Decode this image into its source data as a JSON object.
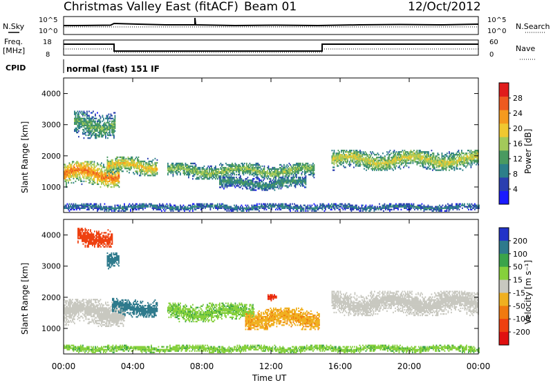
{
  "header": {
    "title": "Christmas Valley East (fitACF)",
    "beam": "Beam 01",
    "date": "12/Oct/2012"
  },
  "panels": {
    "nsky_label": "N.Sky",
    "nsearch_label": "N.Search",
    "freq_label_1": "Freq.",
    "freq_label_2": "[MHz]",
    "nave_label": "Nave",
    "cpid_label": "CPID",
    "cpid_value": "normal (fast) 151 IF",
    "noise_ticks_left": [
      "10^5",
      "10^0"
    ],
    "noise_ticks_right": [
      "10^5",
      "10^0"
    ],
    "freq_ticks_left": [
      "18",
      "8"
    ],
    "nave_ticks_right": [
      "60",
      "0"
    ]
  },
  "x_axis": {
    "label": "Time UT",
    "ticks": [
      "00:00",
      "04:00",
      "08:00",
      "12:00",
      "16:00",
      "20:00",
      "00:00"
    ]
  },
  "power_colorbar": {
    "label": "Power [dB]",
    "ticks": [
      "28",
      "24",
      "20",
      "16",
      "12",
      "8",
      "4"
    ],
    "colors": [
      "#1a1aff",
      "#2a3fb0",
      "#2d7f8a",
      "#4a9a60",
      "#a3c95a",
      "#f0c830",
      "#f59a1e",
      "#ee5a20",
      "#e01b1b"
    ]
  },
  "velocity_colorbar": {
    "label": "Velocity [m s⁻¹]",
    "ticks": [
      "200",
      "100",
      "50",
      "15",
      "-15",
      "-50",
      "-100",
      "-200"
    ],
    "colors": [
      "#2233c8",
      "#2e7a8c",
      "#3aa44a",
      "#86d03c",
      "#c8c8c0",
      "#f0b020",
      "#f07a10",
      "#ee4010",
      "#e01010"
    ]
  },
  "chart_data": [
    {
      "type": "heatmap",
      "title": "Power",
      "ylabel": "Slant Range [km]",
      "xlabel": "",
      "y_ticks": [
        "1000",
        "2000",
        "3000",
        "4000"
      ],
      "x_range_hours": [
        0,
        24
      ],
      "y_range_km": [
        180,
        4500
      ],
      "z_units": "dB",
      "regions": [
        {
          "t_start": 0.0,
          "t_end": 3.2,
          "r_center": 1400,
          "r_halfwidth": 420,
          "value": 22
        },
        {
          "t_start": 0.6,
          "t_end": 3.0,
          "r_center": 3000,
          "r_halfwidth": 450,
          "value": 12
        },
        {
          "t_start": 2.5,
          "t_end": 5.4,
          "r_center": 1650,
          "r_halfwidth": 300,
          "value": 18
        },
        {
          "t_start": 6.0,
          "t_end": 14.5,
          "r_center": 1500,
          "r_halfwidth": 260,
          "value": 14
        },
        {
          "t_start": 9.0,
          "t_end": 14.0,
          "r_center": 1100,
          "r_halfwidth": 220,
          "value": 10
        },
        {
          "t_start": 15.5,
          "t_end": 24.0,
          "r_center": 1850,
          "r_halfwidth": 330,
          "value": 16
        },
        {
          "t_start": 0.0,
          "t_end": 24.0,
          "r_center": 330,
          "r_halfwidth": 120,
          "value": 8
        }
      ]
    },
    {
      "type": "heatmap",
      "title": "Velocity",
      "ylabel": "Slant Range [km]",
      "xlabel": "Time UT",
      "y_ticks": [
        "1000",
        "2000",
        "3000",
        "4000"
      ],
      "x_range_hours": [
        0,
        24
      ],
      "y_range_km": [
        180,
        4500
      ],
      "z_units": "m/s",
      "regions": [
        {
          "t_start": 0.0,
          "t_end": 3.5,
          "r_center": 1500,
          "r_halfwidth": 450,
          "value": 0
        },
        {
          "t_start": 0.8,
          "t_end": 2.8,
          "r_center": 3900,
          "r_halfwidth": 300,
          "value": -150
        },
        {
          "t_start": 2.5,
          "t_end": 3.2,
          "r_center": 3150,
          "r_halfwidth": 250,
          "value": 180
        },
        {
          "t_start": 2.8,
          "t_end": 5.4,
          "r_center": 1650,
          "r_halfwidth": 300,
          "value": 120
        },
        {
          "t_start": 6.0,
          "t_end": 11.0,
          "r_center": 1500,
          "r_halfwidth": 300,
          "value": 40
        },
        {
          "t_start": 10.5,
          "t_end": 14.8,
          "r_center": 1300,
          "r_halfwidth": 350,
          "value": -40
        },
        {
          "t_start": 11.8,
          "t_end": 12.3,
          "r_center": 1950,
          "r_halfwidth": 120,
          "value": -200
        },
        {
          "t_start": 15.5,
          "t_end": 24.0,
          "r_center": 1800,
          "r_halfwidth": 400,
          "value": 0
        },
        {
          "t_start": 0.0,
          "t_end": 24.0,
          "r_center": 330,
          "r_halfwidth": 120,
          "value": 40
        }
      ]
    }
  ]
}
